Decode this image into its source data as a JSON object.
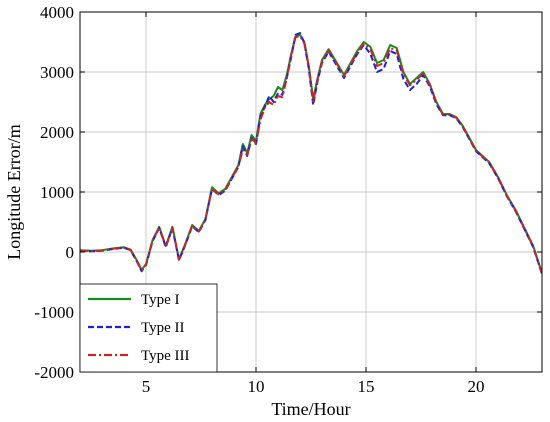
{
  "chart_data": {
    "type": "line",
    "xlabel": "Time/Hour",
    "ylabel": "Longitude Error/m",
    "xlim": [
      2,
      23
    ],
    "ylim": [
      -2000,
      4000
    ],
    "xticks": [
      5,
      10,
      15,
      20
    ],
    "yticks": [
      -2000,
      -1000,
      0,
      1000,
      2000,
      3000,
      4000
    ],
    "xtick_labels": [
      "5",
      "10",
      "15",
      "20"
    ],
    "ytick_labels": [
      "-2000",
      "-1000",
      "0",
      "1000",
      "2000",
      "3000",
      "4000"
    ],
    "grid": true,
    "legend_position": "bottom-left",
    "series": [
      {
        "name": "Type I",
        "color": "#1a8c1a",
        "dash": "solid",
        "x": [
          2.0,
          2.5,
          3.0,
          3.5,
          4.0,
          4.3,
          4.6,
          4.8,
          5.0,
          5.3,
          5.6,
          5.9,
          6.2,
          6.5,
          6.8,
          7.1,
          7.4,
          7.7,
          8.0,
          8.3,
          8.6,
          8.9,
          9.2,
          9.4,
          9.6,
          9.8,
          10.0,
          10.2,
          10.4,
          10.6,
          10.8,
          11.0,
          11.2,
          11.4,
          11.6,
          11.8,
          12.0,
          12.2,
          12.4,
          12.6,
          12.8,
          13.0,
          13.3,
          13.6,
          14.0,
          14.3,
          14.6,
          14.9,
          15.2,
          15.5,
          15.8,
          16.1,
          16.4,
          16.7,
          17.0,
          17.3,
          17.6,
          17.9,
          18.2,
          18.5,
          18.8,
          19.1,
          19.4,
          19.7,
          20.0,
          20.3,
          20.6,
          21.0,
          21.4,
          21.8,
          22.2,
          22.6,
          23.0
        ],
        "y": [
          30,
          20,
          30,
          60,
          80,
          40,
          -150,
          -300,
          -200,
          200,
          420,
          100,
          420,
          -120,
          150,
          450,
          350,
          550,
          1080,
          980,
          1050,
          1250,
          1450,
          1800,
          1650,
          1950,
          1850,
          2300,
          2450,
          2550,
          2600,
          2750,
          2700,
          2950,
          3300,
          3600,
          3620,
          3500,
          3100,
          2550,
          2900,
          3200,
          3380,
          3200,
          2950,
          3150,
          3350,
          3500,
          3420,
          3150,
          3200,
          3450,
          3400,
          3000,
          2800,
          2900,
          3000,
          2800,
          2500,
          2300,
          2300,
          2250,
          2100,
          1900,
          1700,
          1600,
          1500,
          1250,
          950,
          700,
          400,
          100,
          -350
        ]
      },
      {
        "name": "Type II",
        "color": "#1f1fd6",
        "dash": "6,3",
        "x": [
          2.0,
          2.5,
          3.0,
          3.5,
          4.0,
          4.3,
          4.6,
          4.8,
          5.0,
          5.3,
          5.6,
          5.9,
          6.2,
          6.5,
          6.8,
          7.1,
          7.4,
          7.7,
          8.0,
          8.3,
          8.6,
          8.9,
          9.2,
          9.4,
          9.6,
          9.8,
          10.0,
          10.2,
          10.4,
          10.6,
          10.8,
          11.0,
          11.2,
          11.4,
          11.6,
          11.8,
          12.0,
          12.2,
          12.4,
          12.6,
          12.8,
          13.0,
          13.3,
          13.6,
          14.0,
          14.3,
          14.6,
          14.9,
          15.2,
          15.5,
          15.8,
          16.1,
          16.4,
          16.7,
          17.0,
          17.3,
          17.6,
          17.9,
          18.2,
          18.5,
          18.8,
          19.1,
          19.4,
          19.7,
          20.0,
          20.3,
          20.6,
          21.0,
          21.4,
          21.8,
          22.2,
          22.6,
          23.0
        ],
        "y": [
          20,
          10,
          20,
          50,
          70,
          30,
          -170,
          -320,
          -220,
          180,
          400,
          80,
          400,
          -140,
          130,
          430,
          330,
          530,
          1050,
          950,
          1020,
          1220,
          1420,
          1760,
          1600,
          1900,
          1800,
          2250,
          2420,
          2600,
          2500,
          2650,
          2620,
          2900,
          3250,
          3620,
          3650,
          3480,
          3050,
          2450,
          2850,
          3150,
          3340,
          3150,
          2900,
          3100,
          3300,
          3450,
          3300,
          3000,
          3050,
          3350,
          3300,
          2880,
          2700,
          2800,
          2950,
          2760,
          2460,
          2280,
          2280,
          2230,
          2080,
          1880,
          1680,
          1580,
          1480,
          1230,
          930,
          680,
          380,
          80,
          -370
        ]
      },
      {
        "name": "Type III",
        "color": "#c0282a",
        "dash": "8,3,2,3",
        "x": [
          2.0,
          2.5,
          3.0,
          3.5,
          4.0,
          4.3,
          4.6,
          4.8,
          5.0,
          5.3,
          5.6,
          5.9,
          6.2,
          6.5,
          6.8,
          7.1,
          7.4,
          7.7,
          8.0,
          8.3,
          8.6,
          8.9,
          9.2,
          9.4,
          9.6,
          9.8,
          10.0,
          10.2,
          10.4,
          10.6,
          10.8,
          11.0,
          11.2,
          11.4,
          11.6,
          11.8,
          12.0,
          12.2,
          12.4,
          12.6,
          12.8,
          13.0,
          13.3,
          13.6,
          14.0,
          14.3,
          14.6,
          14.9,
          15.2,
          15.5,
          15.8,
          16.1,
          16.4,
          16.7,
          17.0,
          17.3,
          17.6,
          17.9,
          18.2,
          18.5,
          18.8,
          19.1,
          19.4,
          19.7,
          20.0,
          20.3,
          20.6,
          21.0,
          21.4,
          21.8,
          22.2,
          22.6,
          23.0
        ],
        "y": [
          25,
          15,
          25,
          55,
          75,
          35,
          -160,
          -310,
          -210,
          190,
          410,
          90,
          410,
          -130,
          140,
          440,
          340,
          540,
          1060,
          960,
          1030,
          1230,
          1430,
          1700,
          1620,
          1880,
          1820,
          2200,
          2400,
          2500,
          2450,
          2600,
          2580,
          2900,
          3280,
          3580,
          3600,
          3470,
          3080,
          2500,
          2880,
          3180,
          3360,
          3180,
          2930,
          3130,
          3320,
          3470,
          3380,
          3100,
          3150,
          3400,
          3360,
          2960,
          2780,
          2870,
          2980,
          2790,
          2480,
          2290,
          2290,
          2240,
          2090,
          1890,
          1690,
          1590,
          1490,
          1240,
          940,
          690,
          390,
          90,
          -360
        ]
      }
    ]
  }
}
